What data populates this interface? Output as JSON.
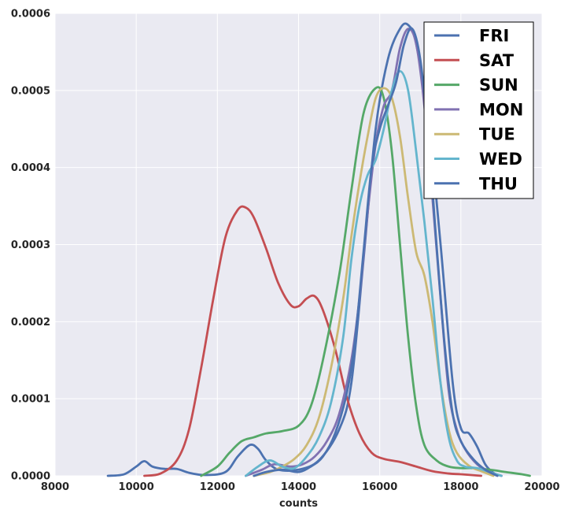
{
  "chart_data": {
    "type": "line",
    "title": "",
    "xlabel": "counts",
    "ylabel": "",
    "xlim": [
      8000,
      20000
    ],
    "ylim": [
      0,
      0.0006
    ],
    "xticks": [
      8000,
      10000,
      12000,
      14000,
      16000,
      18000,
      20000
    ],
    "xtick_labels": [
      "8000",
      "10000",
      "12000",
      "14000",
      "16000",
      "18000",
      "20000"
    ],
    "yticks": [
      0,
      0.0001,
      0.0002,
      0.0003,
      0.0004,
      0.0005,
      0.0006
    ],
    "ytick_labels": [
      "0.0000",
      "0.0001",
      "0.0002",
      "0.0003",
      "0.0004",
      "0.0005",
      "0.0006"
    ],
    "grid": true,
    "legend_position": "top-right",
    "series": [
      {
        "name": "FRI",
        "color": "#4c72b0",
        "points": [
          [
            9300,
            0
          ],
          [
            9700,
            2e-06
          ],
          [
            10000,
            1.2e-05
          ],
          [
            10200,
            1.9e-05
          ],
          [
            10400,
            1.2e-05
          ],
          [
            10700,
            9e-06
          ],
          [
            11000,
            9e-06
          ],
          [
            11300,
            4e-06
          ],
          [
            11700,
            1e-06
          ],
          [
            12200,
            5e-06
          ],
          [
            12500,
            2.5e-05
          ],
          [
            12800,
            4e-05
          ],
          [
            13000,
            3.5e-05
          ],
          [
            13200,
            2e-05
          ],
          [
            13500,
            8e-06
          ],
          [
            14000,
            8e-06
          ],
          [
            14500,
            2e-05
          ],
          [
            15000,
            6e-05
          ],
          [
            15300,
            0.00012
          ],
          [
            15600,
            0.00028
          ],
          [
            15900,
            0.00045
          ],
          [
            16200,
            0.00054
          ],
          [
            16500,
            0.00058
          ],
          [
            16700,
            0.000585
          ],
          [
            16900,
            0.00056
          ],
          [
            17200,
            0.00046
          ],
          [
            17500,
            0.0003
          ],
          [
            17800,
            0.00012
          ],
          [
            18000,
            6.2e-05
          ],
          [
            18200,
            5.5e-05
          ],
          [
            18400,
            3.8e-05
          ],
          [
            18600,
            1.5e-05
          ],
          [
            18800,
            4e-06
          ],
          [
            19000,
            0
          ]
        ]
      },
      {
        "name": "SAT",
        "color": "#c44e52",
        "points": [
          [
            10200,
            0
          ],
          [
            10600,
            3e-06
          ],
          [
            11000,
            2e-05
          ],
          [
            11300,
            6e-05
          ],
          [
            11600,
            0.00014
          ],
          [
            11900,
            0.00023
          ],
          [
            12200,
            0.00031
          ],
          [
            12500,
            0.000345
          ],
          [
            12700,
            0.000348
          ],
          [
            12900,
            0.000335
          ],
          [
            13200,
            0.000295
          ],
          [
            13500,
            0.00025
          ],
          [
            13800,
            0.000222
          ],
          [
            14000,
            0.00022
          ],
          [
            14200,
            0.00023
          ],
          [
            14400,
            0.000233
          ],
          [
            14600,
            0.000215
          ],
          [
            14900,
            0.000165
          ],
          [
            15200,
            0.0001
          ],
          [
            15500,
            5.5e-05
          ],
          [
            15800,
            3e-05
          ],
          [
            16100,
            2.2e-05
          ],
          [
            16500,
            1.8e-05
          ],
          [
            16900,
            1.2e-05
          ],
          [
            17300,
            6e-06
          ],
          [
            17700,
            3e-06
          ],
          [
            18000,
            2e-06
          ],
          [
            18500,
            0
          ]
        ]
      },
      {
        "name": "SUN",
        "color": "#55a868",
        "points": [
          [
            11600,
            0
          ],
          [
            12000,
            1.2e-05
          ],
          [
            12300,
            3e-05
          ],
          [
            12600,
            4.5e-05
          ],
          [
            12900,
            5e-05
          ],
          [
            13200,
            5.5e-05
          ],
          [
            13600,
            5.8e-05
          ],
          [
            14000,
            6.5e-05
          ],
          [
            14300,
            9e-05
          ],
          [
            14600,
            0.00015
          ],
          [
            15000,
            0.00026
          ],
          [
            15300,
            0.00037
          ],
          [
            15600,
            0.00047
          ],
          [
            15900,
            0.000503
          ],
          [
            16100,
            0.00049
          ],
          [
            16300,
            0.00042
          ],
          [
            16500,
            0.0003
          ],
          [
            16700,
            0.00018
          ],
          [
            16900,
            9e-05
          ],
          [
            17100,
            4e-05
          ],
          [
            17400,
            2e-05
          ],
          [
            17700,
            1.2e-05
          ],
          [
            18000,
            1e-05
          ],
          [
            18300,
            1e-05
          ],
          [
            18700,
            8e-06
          ],
          [
            19100,
            5e-06
          ],
          [
            19500,
            2e-06
          ],
          [
            19700,
            0
          ]
        ]
      },
      {
        "name": "MON",
        "color": "#8172b2",
        "points": [
          [
            12700,
            0
          ],
          [
            13100,
            8e-06
          ],
          [
            13400,
            1.5e-05
          ],
          [
            13800,
            1.2e-05
          ],
          [
            14100,
            1.5e-05
          ],
          [
            14400,
            2.5e-05
          ],
          [
            14700,
            4.5e-05
          ],
          [
            15000,
            8e-05
          ],
          [
            15300,
            0.00015
          ],
          [
            15500,
            0.00023
          ],
          [
            15700,
            0.00034
          ],
          [
            15900,
            0.00043
          ],
          [
            16100,
            0.00048
          ],
          [
            16300,
            0.0005
          ],
          [
            16500,
            0.000555
          ],
          [
            16700,
            0.00058
          ],
          [
            16900,
            0.00056
          ],
          [
            17100,
            0.00048
          ],
          [
            17300,
            0.00036
          ],
          [
            17500,
            0.00023
          ],
          [
            17700,
            0.00011
          ],
          [
            17900,
            6e-05
          ],
          [
            18100,
            3.5e-05
          ],
          [
            18400,
            1.5e-05
          ],
          [
            18700,
            5e-06
          ],
          [
            19000,
            0
          ]
        ]
      },
      {
        "name": "TUE",
        "color": "#ccb974",
        "points": [
          [
            12900,
            0
          ],
          [
            13300,
            5e-06
          ],
          [
            13600,
            1.2e-05
          ],
          [
            13900,
            2.2e-05
          ],
          [
            14200,
            4e-05
          ],
          [
            14500,
            7.5e-05
          ],
          [
            14800,
            0.00014
          ],
          [
            15100,
            0.00023
          ],
          [
            15300,
            0.00031
          ],
          [
            15500,
            0.00038
          ],
          [
            15700,
            0.00044
          ],
          [
            15900,
            0.00049
          ],
          [
            16100,
            0.000503
          ],
          [
            16300,
            0.00049
          ],
          [
            16500,
            0.00044
          ],
          [
            16700,
            0.00036
          ],
          [
            16900,
            0.00029
          ],
          [
            17100,
            0.00026
          ],
          [
            17300,
            0.0002
          ],
          [
            17500,
            0.00012
          ],
          [
            17700,
            6e-05
          ],
          [
            17900,
            3e-05
          ],
          [
            18200,
            1.3e-05
          ],
          [
            18500,
            6e-06
          ],
          [
            18800,
            0
          ]
        ]
      },
      {
        "name": "WED",
        "color": "#64b5cd",
        "points": [
          [
            12700,
            0
          ],
          [
            13000,
            1.2e-05
          ],
          [
            13300,
            2e-05
          ],
          [
            13600,
            1.2e-05
          ],
          [
            13900,
            1e-05
          ],
          [
            14200,
            2.5e-05
          ],
          [
            14500,
            5e-05
          ],
          [
            14800,
            9.5e-05
          ],
          [
            15100,
            0.00018
          ],
          [
            15300,
            0.00028
          ],
          [
            15500,
            0.00035
          ],
          [
            15700,
            0.00039
          ],
          [
            15900,
            0.00041
          ],
          [
            16100,
            0.00045
          ],
          [
            16300,
            0.0005
          ],
          [
            16500,
            0.000525
          ],
          [
            16700,
            0.0005
          ],
          [
            16900,
            0.00042
          ],
          [
            17100,
            0.00033
          ],
          [
            17300,
            0.00023
          ],
          [
            17500,
            0.00012
          ],
          [
            17700,
            5e-05
          ],
          [
            17900,
            2e-05
          ],
          [
            18100,
            1.2e-05
          ],
          [
            18400,
            1e-05
          ],
          [
            18700,
            5e-06
          ],
          [
            19000,
            0
          ]
        ]
      },
      {
        "name": "THU",
        "color": "#4c72b0",
        "points": [
          [
            12900,
            0
          ],
          [
            13200,
            5e-06
          ],
          [
            13600,
            8e-06
          ],
          [
            14000,
            5e-06
          ],
          [
            14300,
            1.2e-05
          ],
          [
            14600,
            2.5e-05
          ],
          [
            14900,
            5.5e-05
          ],
          [
            15200,
            0.00011
          ],
          [
            15400,
            0.00018
          ],
          [
            15600,
            0.00029
          ],
          [
            15800,
            0.0004
          ],
          [
            16000,
            0.00045
          ],
          [
            16200,
            0.00048
          ],
          [
            16400,
            0.00051
          ],
          [
            16600,
            0.00056
          ],
          [
            16800,
            0.00058
          ],
          [
            17000,
            0.00054
          ],
          [
            17200,
            0.00044
          ],
          [
            17400,
            0.0003
          ],
          [
            17600,
            0.00017
          ],
          [
            17800,
            8e-05
          ],
          [
            18000,
            4.5e-05
          ],
          [
            18300,
            2.2e-05
          ],
          [
            18600,
            8e-06
          ],
          [
            18900,
            0
          ]
        ]
      }
    ]
  }
}
